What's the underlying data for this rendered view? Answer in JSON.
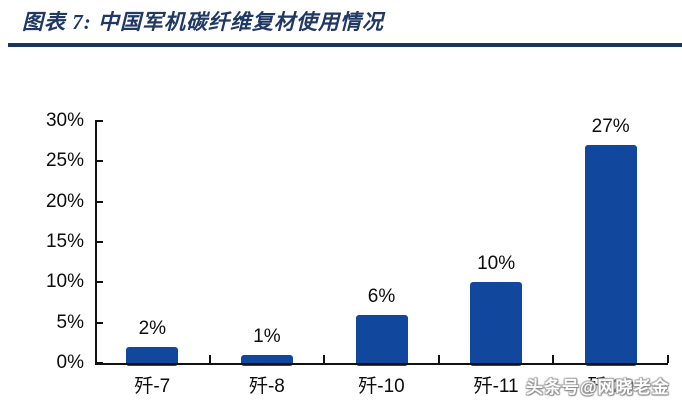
{
  "header": {
    "title": "图表 7: 中国军机碳纤维复材使用情况"
  },
  "watermark": "头条号@网晓老金",
  "colors": {
    "title_navy": "#1F3864",
    "rule_navy": "#17375E",
    "bar_blue": "#11489D",
    "axis_black": "#111111",
    "label_black": "#0d0d0d"
  },
  "chart_data": {
    "type": "bar",
    "title": "中国军机碳纤维复材使用情况",
    "categories": [
      "歼-7",
      "歼-8",
      "歼-10",
      "歼-11",
      "歼-20"
    ],
    "values": [
      2,
      1,
      6,
      10,
      27
    ],
    "value_labels": [
      "2%",
      "1%",
      "6%",
      "10%",
      "27%"
    ],
    "xlabel": "",
    "ylabel": "",
    "ylim": [
      0,
      30
    ],
    "yticks": [
      0,
      5,
      10,
      15,
      20,
      25,
      30
    ],
    "ytick_labels": [
      "0%",
      "5%",
      "10%",
      "15%",
      "20%",
      "25%",
      "30%"
    ],
    "grid": false,
    "legend": "none",
    "bar_color": "#11489D"
  }
}
